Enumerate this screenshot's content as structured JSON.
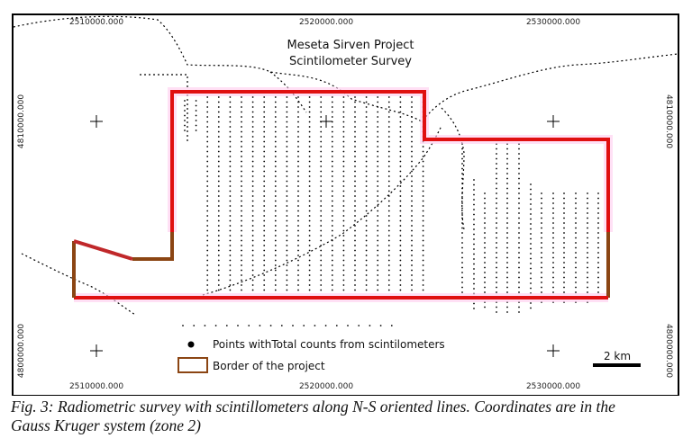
{
  "map": {
    "title": [
      "Meseta Sirven Project",
      "Scintilometer Survey"
    ],
    "x_labels": [
      "2510000.000",
      "2520000.000",
      "2530000.000"
    ],
    "y_labels": [
      "4810000.000",
      "4800000.000"
    ],
    "legend": [
      "Points withTotal counts from scintilometers",
      "Border of the project"
    ],
    "scale_label": "2 km"
  },
  "caption": [
    "Fig. 3: Radiometric survey with scintillometers along N-S oriented lines. Coordinates are in the",
    "Gauss Kruger system (zone 2)"
  ]
}
